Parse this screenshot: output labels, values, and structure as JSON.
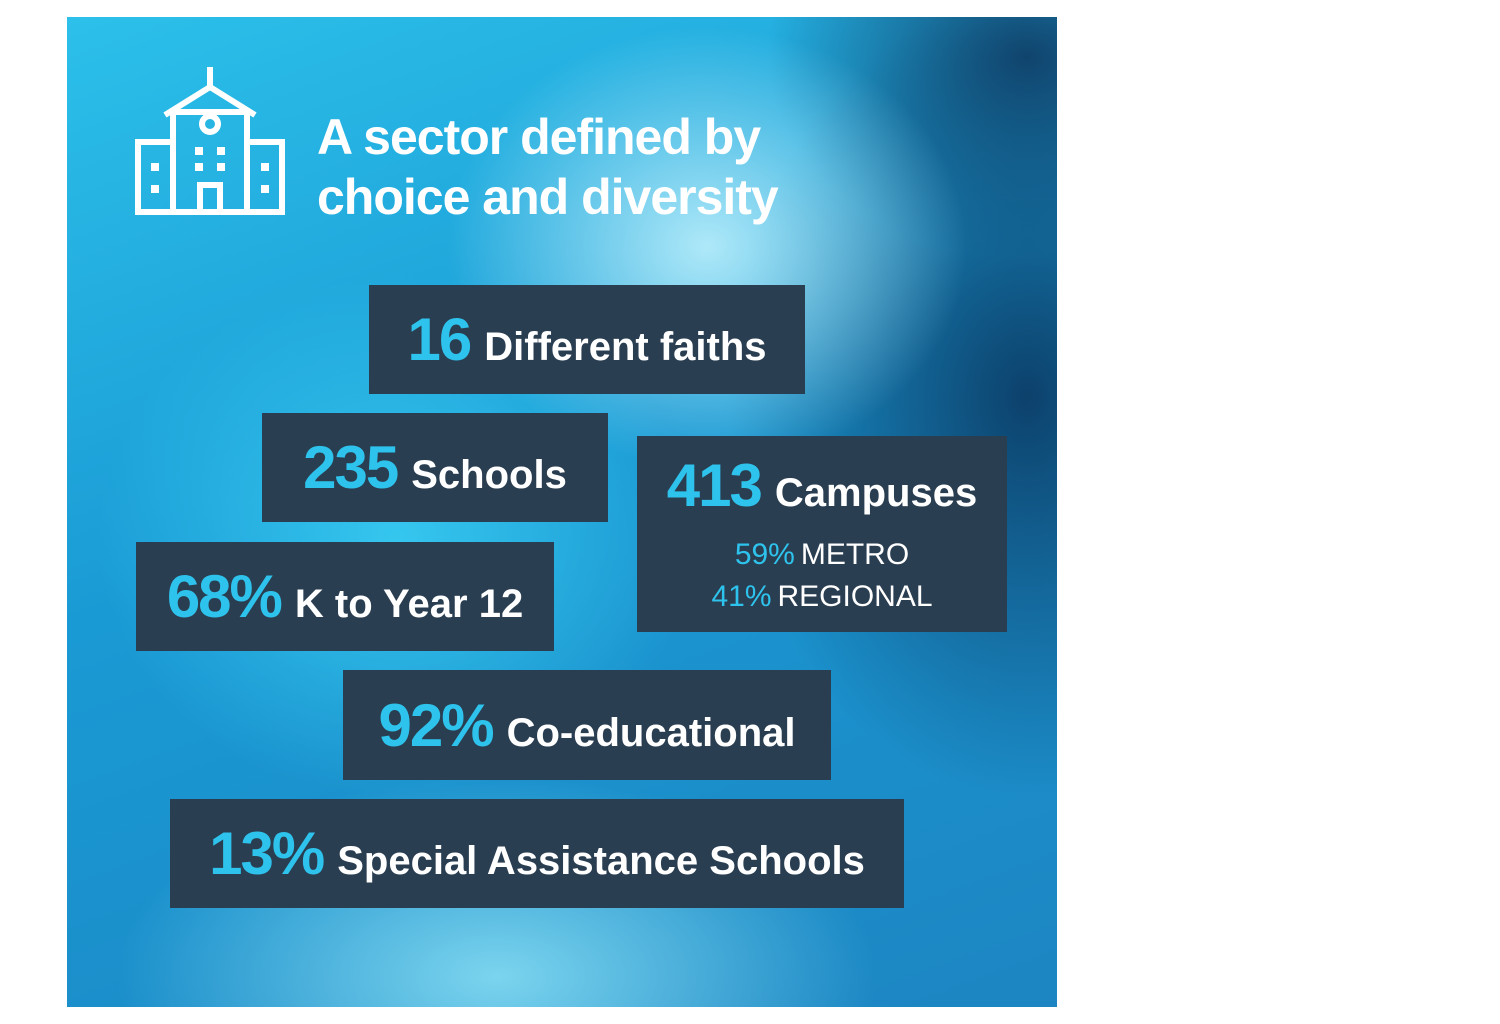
{
  "header": {
    "title_lines": [
      "A sector defined by",
      "choice and diversity"
    ]
  },
  "stats": [
    {
      "figure": "16",
      "label": "Different faiths"
    },
    {
      "figure": "235",
      "label": "Schools"
    },
    {
      "figure": "413",
      "label": "Campuses",
      "breakdown": [
        {
          "figure": "59%",
          "label": "METRO"
        },
        {
          "figure": "41%",
          "label": "REGIONAL"
        }
      ]
    },
    {
      "figure": "68%",
      "label": "K to Year 12"
    },
    {
      "figure": "92%",
      "label": "Co-educational"
    },
    {
      "figure": "13%",
      "label": "Special Assistance Schools"
    }
  ]
}
